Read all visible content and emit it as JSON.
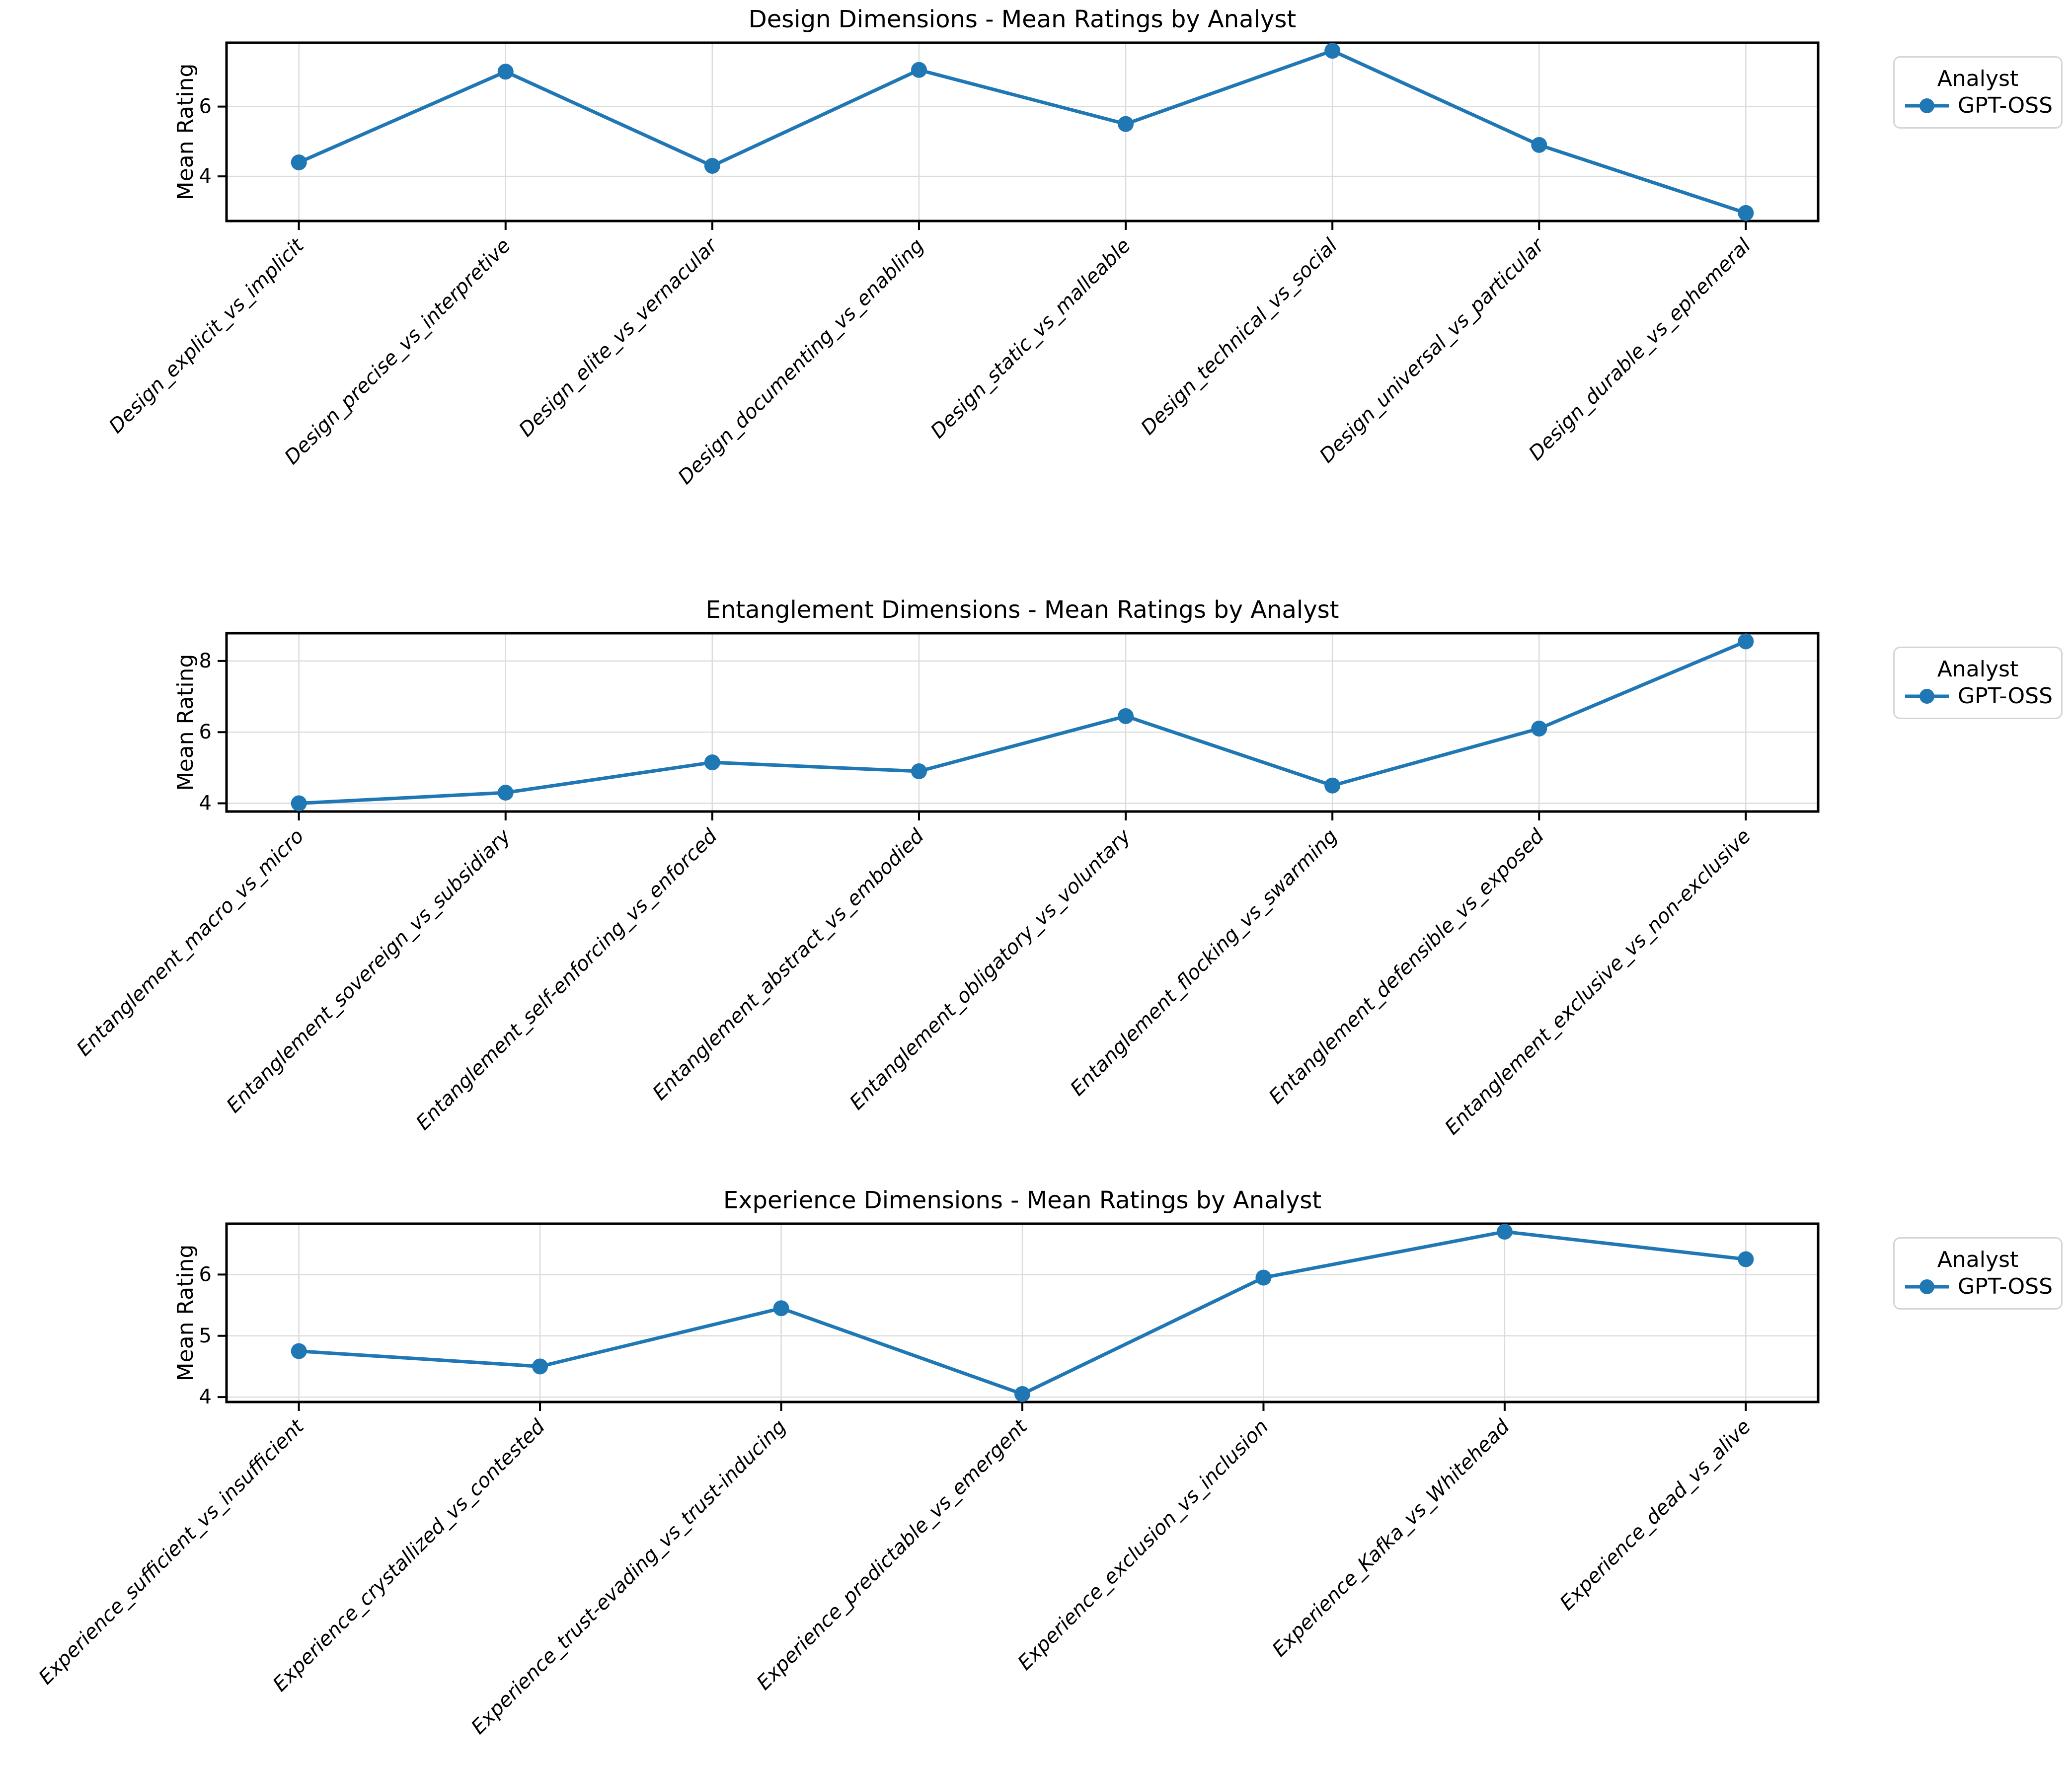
{
  "chart_data": [
    {
      "type": "line",
      "title": "Design Dimensions - Mean Ratings by Analyst",
      "ylabel": "Mean Rating",
      "xlabel": "",
      "grid": true,
      "legend": {
        "title": "Analyst",
        "position": "outside-upper-right"
      },
      "yticks": [
        4,
        6
      ],
      "ylim": [
        2.72,
        7.83
      ],
      "categories": [
        "Design_explicit_vs_implicit",
        "Design_precise_vs_interpretive",
        "Design_elite_vs_vernacular",
        "Design_documenting_vs_enabling",
        "Design_static_vs_malleable",
        "Design_technical_vs_social",
        "Design_universal_vs_particular",
        "Design_durable_vs_ephemeral"
      ],
      "series": [
        {
          "name": "GPT-OSS",
          "color": "#1f77b4",
          "marker": "circle",
          "values": [
            4.4,
            7.0,
            4.3,
            7.05,
            5.5,
            7.6,
            4.9,
            2.95
          ]
        }
      ]
    },
    {
      "type": "line",
      "title": "Entanglement Dimensions - Mean Ratings by Analyst",
      "ylabel": "Mean Rating",
      "xlabel": "",
      "grid": true,
      "legend": {
        "title": "Analyst",
        "position": "outside-upper-right"
      },
      "yticks": [
        4,
        6,
        8
      ],
      "ylim": [
        3.77,
        8.78
      ],
      "categories": [
        "Entanglement_macro_vs_micro",
        "Entanglement_sovereign_vs_subsidiary",
        "Entanglement_self-enforcing_vs_enforced",
        "Entanglement_abstract_vs_embodied",
        "Entanglement_obligatory_vs_voluntary",
        "Entanglement_flocking_vs_swarming",
        "Entanglement_defensible_vs_exposed",
        "Entanglement_exclusive_vs_non-exclusive"
      ],
      "series": [
        {
          "name": "GPT-OSS",
          "color": "#1f77b4",
          "marker": "circle",
          "values": [
            4.0,
            4.3,
            5.15,
            4.9,
            6.45,
            4.5,
            6.1,
            8.55
          ]
        }
      ]
    },
    {
      "type": "line",
      "title": "Experience Dimensions - Mean Ratings by Analyst",
      "ylabel": "Mean Rating",
      "xlabel": "",
      "grid": true,
      "legend": {
        "title": "Analyst",
        "position": "outside-upper-right"
      },
      "yticks": [
        4,
        5,
        6
      ],
      "ylim": [
        3.92,
        6.83
      ],
      "categories": [
        "Experience_sufficient_vs_insufficient",
        "Experience_crystallized_vs_contested",
        "Experience_trust-evading_vs_trust-inducing",
        "Experience_predictable_vs_emergent",
        "Experience_exclusion_vs_inclusion",
        "Experience_Kafka_vs_Whitehead",
        "Experience_dead_vs_alive"
      ],
      "series": [
        {
          "name": "GPT-OSS",
          "color": "#1f77b4",
          "marker": "circle",
          "values": [
            4.75,
            4.5,
            5.45,
            4.05,
            5.95,
            6.7,
            6.25
          ]
        }
      ]
    }
  ]
}
